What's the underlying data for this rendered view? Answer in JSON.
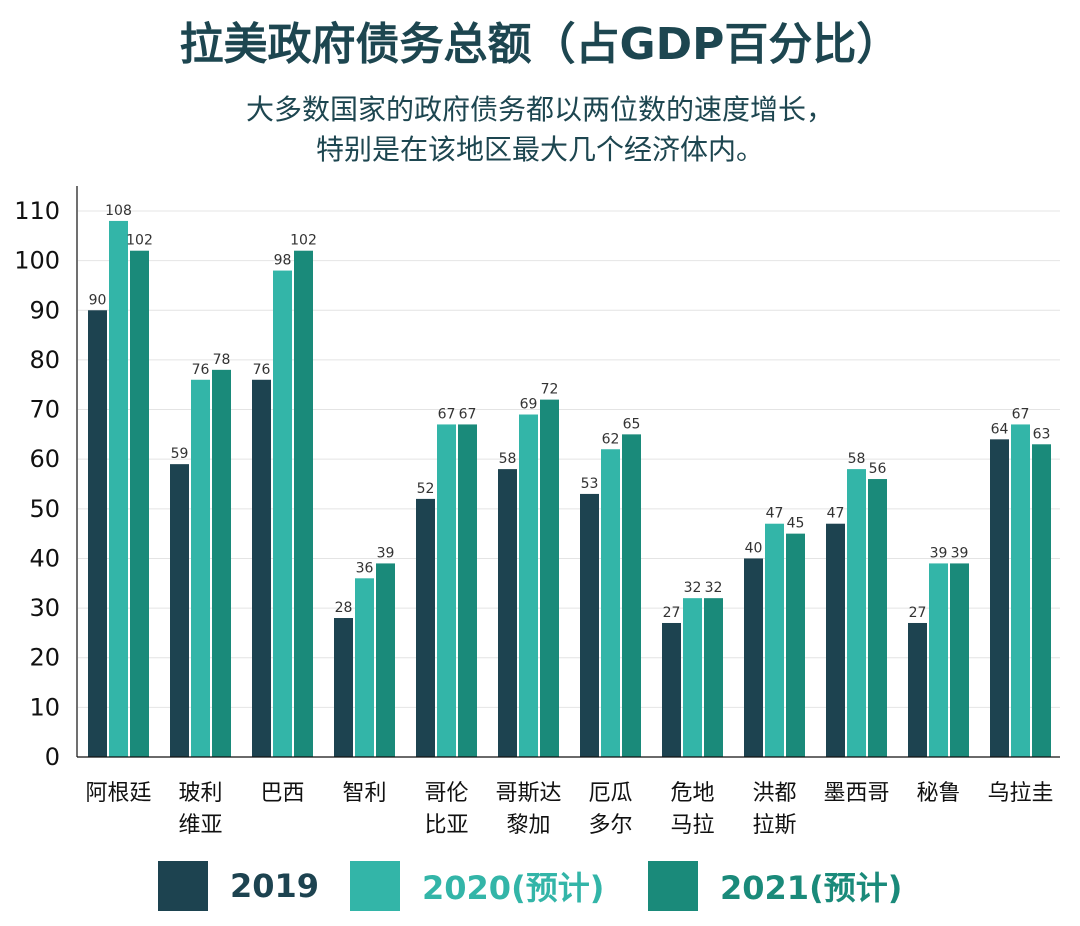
{
  "header": {
    "title": "拉美政府债务总额（占GDP百分比）",
    "subtitle_line1": "大多数国家的政府债务都以两位数的速度增长，",
    "subtitle_line2": "特别是在该地区最大几个经济体内。"
  },
  "colors": {
    "s2019": "#1d4350",
    "s2020": "#33b5a8",
    "s2021": "#1a8a7a",
    "grid": "#e4e4e4",
    "axis": "#111111"
  },
  "chart_data": {
    "type": "bar",
    "title": "拉美政府债务总额（占GDP百分比）",
    "xlabel": "",
    "ylabel": "",
    "ylim": [
      0,
      110
    ],
    "yticks": [
      "0",
      "10",
      "20",
      "30",
      "40",
      "50",
      "60",
      "70",
      "80",
      "90",
      "100",
      "110"
    ],
    "grid": true,
    "legend_position": "bottom",
    "categories": [
      [
        "阿根廷"
      ],
      [
        "玻利",
        "维亚"
      ],
      [
        "巴西"
      ],
      [
        "智利"
      ],
      [
        "哥伦",
        "比亚"
      ],
      [
        "哥斯达",
        "黎加"
      ],
      [
        "厄瓜",
        "多尔"
      ],
      [
        "危地",
        "马拉"
      ],
      [
        "洪都",
        "拉斯"
      ],
      [
        "墨西哥"
      ],
      [
        "秘鲁"
      ],
      [
        "乌拉圭"
      ]
    ],
    "series": [
      {
        "name": "2019",
        "values": [
          90,
          59,
          76,
          28,
          52,
          58,
          53,
          27,
          40,
          47,
          27,
          64
        ]
      },
      {
        "name": "2020(预计)",
        "values": [
          108,
          76,
          98,
          36,
          67,
          69,
          62,
          32,
          47,
          58,
          39,
          67
        ]
      },
      {
        "name": "2021(预计)",
        "values": [
          102,
          78,
          102,
          39,
          67,
          72,
          65,
          32,
          45,
          56,
          39,
          63
        ]
      }
    ]
  }
}
